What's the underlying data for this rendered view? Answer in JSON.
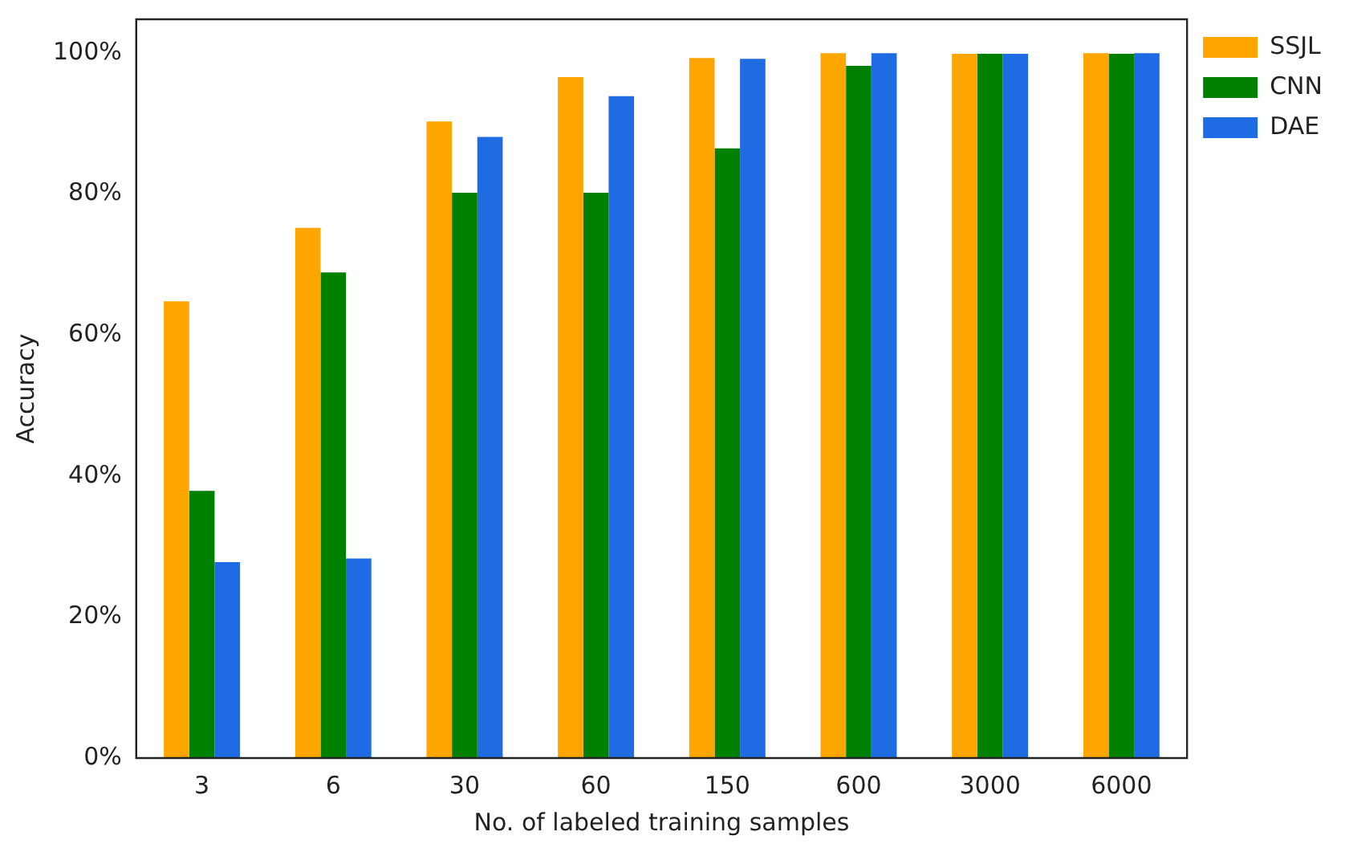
{
  "chart_data": {
    "type": "bar",
    "xlabel": "No. of labeled training samples",
    "ylabel": "Accuracy",
    "categories": [
      "3",
      "6",
      "30",
      "60",
      "150",
      "600",
      "3000",
      "6000"
    ],
    "series": [
      {
        "name": "SSJL",
        "color": "#ffa500",
        "values": [
          64.8,
          75.2,
          90.3,
          96.6,
          99.3,
          100,
          99.9,
          100
        ]
      },
      {
        "name": "CNN",
        "color": "#008000",
        "values": [
          37.9,
          68.9,
          80.2,
          80.2,
          86.5,
          98.2,
          99.9,
          99.9
        ]
      },
      {
        "name": "DAE",
        "color": "#1f6be3",
        "values": [
          27.8,
          28.3,
          88.1,
          93.9,
          99.2,
          100,
          99.9,
          100
        ]
      }
    ],
    "ylim": [
      0,
      104.8
    ],
    "yticks": [
      {
        "value": 0,
        "label": "0%"
      },
      {
        "value": 20,
        "label": "20%"
      },
      {
        "value": 40,
        "label": "40%"
      },
      {
        "value": 60,
        "label": "60%"
      },
      {
        "value": 80,
        "label": "80%"
      },
      {
        "value": 100,
        "label": "100%"
      }
    ],
    "grid": false,
    "legend": "top right"
  }
}
